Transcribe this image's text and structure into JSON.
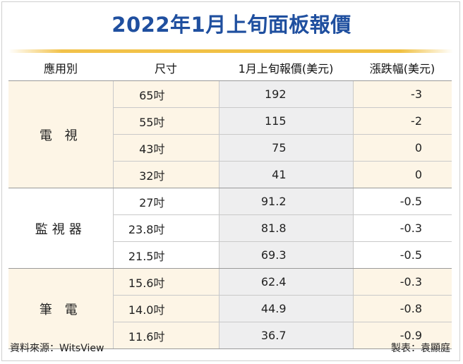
{
  "title": "2022年1月上旬面板報價",
  "colors": {
    "title": "#1f4f9f",
    "rule": "#f0c040",
    "shade": "#fdf5e6",
    "price_column": "#eeeeef"
  },
  "headers": [
    "應用別",
    "尺寸",
    "1月上旬報價(美元)",
    "漲跌幅(美元)"
  ],
  "chart_data": {
    "type": "table",
    "columns": [
      "應用別",
      "尺寸",
      "1月上旬報價(美元)",
      "漲跌幅(美元)"
    ],
    "groups": [
      {
        "label": "電 視",
        "rows": [
          {
            "size": "65吋",
            "price": "192",
            "change": "-3"
          },
          {
            "size": "55吋",
            "price": "115",
            "change": "-2"
          },
          {
            "size": "43吋",
            "price": "75",
            "change": "0"
          },
          {
            "size": "32吋",
            "price": "41",
            "change": "0"
          }
        ]
      },
      {
        "label": "監視器",
        "rows": [
          {
            "size": "27吋",
            "price": "91.2",
            "change": "-0.5"
          },
          {
            "size": "23.8吋",
            "price": "81.8",
            "change": "-0.3"
          },
          {
            "size": "21.5吋",
            "price": "69.3",
            "change": "-0.5"
          }
        ]
      },
      {
        "label": "筆 電",
        "rows": [
          {
            "size": "15.6吋",
            "price": "62.4",
            "change": "-0.3"
          },
          {
            "size": "14.0吋",
            "price": "44.9",
            "change": "-0.8"
          },
          {
            "size": "11.6吋",
            "price": "36.7",
            "change": "-0.9"
          }
        ]
      }
    ]
  },
  "footer": {
    "source": "資料來源：WitsView",
    "credit": "製表：袁顯庭"
  }
}
